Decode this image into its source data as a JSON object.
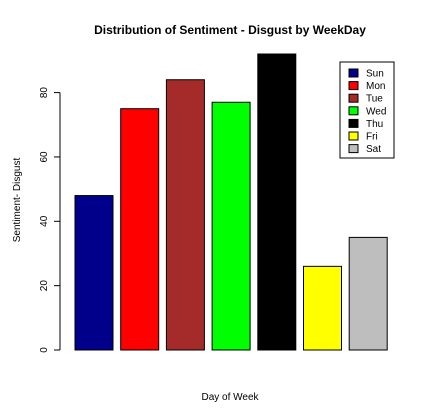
{
  "chart_data": {
    "type": "bar",
    "title": "Distribution of Sentiment - Disgust by WeekDay",
    "xlabel": "Day of Week",
    "ylabel": "Sentiment- Disgust",
    "categories": [
      "Sun",
      "Mon",
      "Tue",
      "Wed",
      "Thu",
      "Fri",
      "Sat"
    ],
    "values": [
      48,
      75,
      84,
      77,
      92,
      26,
      35
    ],
    "colors": [
      "#00008B",
      "#FF0000",
      "#A52A2A",
      "#00FF00",
      "#000000",
      "#FFFF00",
      "#BEBEBE"
    ],
    "ylim": [
      0,
      92
    ],
    "yticks": [
      0,
      20,
      40,
      60,
      80
    ],
    "grid": false,
    "legend": {
      "position": "top-right",
      "entries": [
        "Sun",
        "Mon",
        "Tue",
        "Wed",
        "Thu",
        "Fri",
        "Sat"
      ]
    }
  }
}
